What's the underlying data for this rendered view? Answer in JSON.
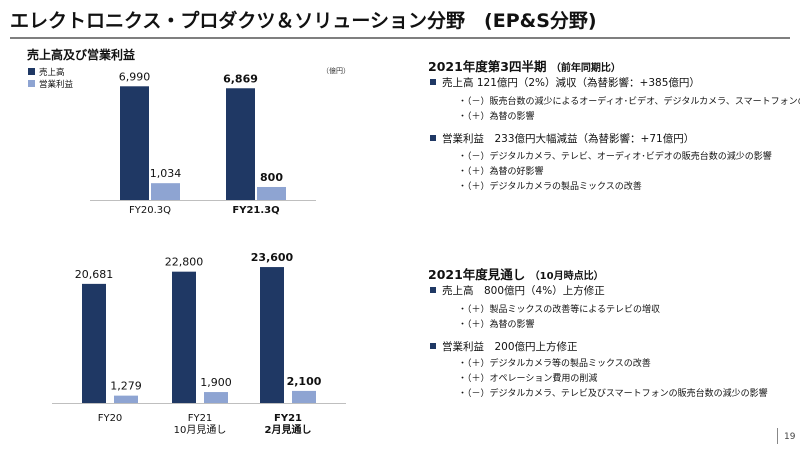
{
  "title": "エレクトロニクス・プロダクツ＆ソリューション分野　(EP&S分野)",
  "chart_heading": "売上高及び営業利益",
  "chart_data": [
    {
      "type": "bar",
      "unit": "（億円）",
      "legend": [
        {
          "name": "売上高",
          "color": "#1f3864"
        },
        {
          "name": "営業利益",
          "color": "#8ea4d2"
        }
      ],
      "categories": [
        "FY20.3Q",
        "FY21.3Q"
      ],
      "category_bold": [
        false,
        true
      ],
      "series": [
        {
          "name": "売上高",
          "values": [
            6990,
            6869
          ],
          "labels": [
            "6,990",
            "6,869"
          ],
          "bold": [
            false,
            true
          ]
        },
        {
          "name": "営業利益",
          "values": [
            1034,
            800
          ],
          "labels": [
            "1,034",
            "800"
          ],
          "bold": [
            false,
            true
          ]
        }
      ],
      "ylim": [
        0,
        7500
      ]
    },
    {
      "type": "bar",
      "categories": [
        [
          "FY20"
        ],
        [
          "FY21",
          "10月見通し"
        ],
        [
          "FY21",
          "2月見通し"
        ]
      ],
      "category_bold": [
        false,
        false,
        true
      ],
      "series": [
        {
          "name": "売上高",
          "values": [
            20681,
            22800,
            23600
          ],
          "labels": [
            "20,681",
            "22,800",
            "23,600"
          ],
          "bold": [
            false,
            false,
            true
          ]
        },
        {
          "name": "営業利益",
          "values": [
            1279,
            1900,
            2100
          ],
          "labels": [
            "1,279",
            "1,900",
            "2,100"
          ],
          "bold": [
            false,
            false,
            true
          ]
        }
      ],
      "ylim": [
        0,
        25000
      ]
    }
  ],
  "sections": [
    {
      "title": "2021年度第3四半期",
      "note": "（前年同期比）",
      "bullets": [
        {
          "text": "売上高 121億円（2%）減収（為替影響：+385億円）",
          "subs": [
            "・（－）販売台数の減少によるオーディオ･ビデオ、デジタルカメラ、スマートフォンの減収",
            "・（＋）為替の影響"
          ]
        },
        {
          "text": "営業利益　233億円大幅減益（為替影響：+71億円）",
          "subs": [
            "・（－）デジタルカメラ、テレビ、オーディオ･ビデオの販売台数の減少の影響",
            "・（＋）為替の好影響",
            "・（＋）デジタルカメラの製品ミックスの改善"
          ]
        }
      ]
    },
    {
      "title": "2021年度見通し",
      "note": "（10月時点比）",
      "bullets": [
        {
          "text": "売上高　800億円（4%）上方修正",
          "subs": [
            "・（＋）製品ミックスの改善等によるテレビの増収",
            "・（＋）為替の影響"
          ]
        },
        {
          "text": "営業利益　200億円上方修正",
          "subs": [
            "・（＋）デジタルカメラ等の製品ミックスの改善",
            "・（＋）オペレーション費用の削減",
            "・（－）デジタルカメラ、テレビ及びスマートフォンの販売台数の減少の影響"
          ]
        }
      ]
    }
  ],
  "page_number": "19"
}
